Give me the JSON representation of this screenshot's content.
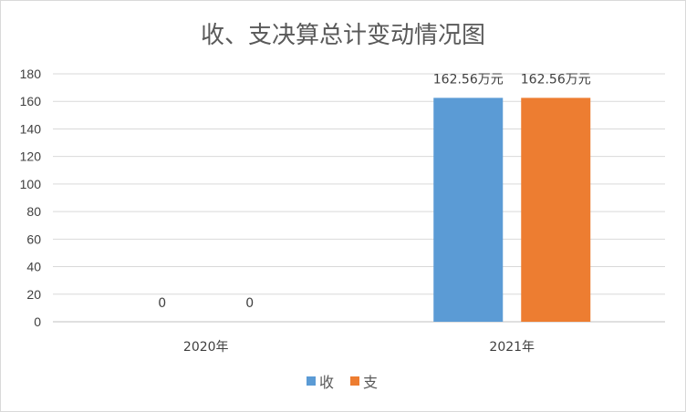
{
  "chart_data": {
    "type": "bar",
    "title": "收、支决算总计变动情况图",
    "categories": [
      "2020年",
      "2021年"
    ],
    "series": [
      {
        "name": "收",
        "color": "#5b9bd5",
        "values": [
          0,
          162.56
        ],
        "labels": [
          "0",
          "162.56万元"
        ]
      },
      {
        "name": "支",
        "color": "#ed7d31",
        "values": [
          0,
          162.56
        ],
        "labels": [
          "0",
          "162.56万元"
        ]
      }
    ],
    "ylim": [
      0,
      180
    ],
    "yticks": [
      0,
      20,
      40,
      60,
      80,
      100,
      120,
      140,
      160,
      180
    ],
    "grid": true,
    "legend": "bottom"
  }
}
